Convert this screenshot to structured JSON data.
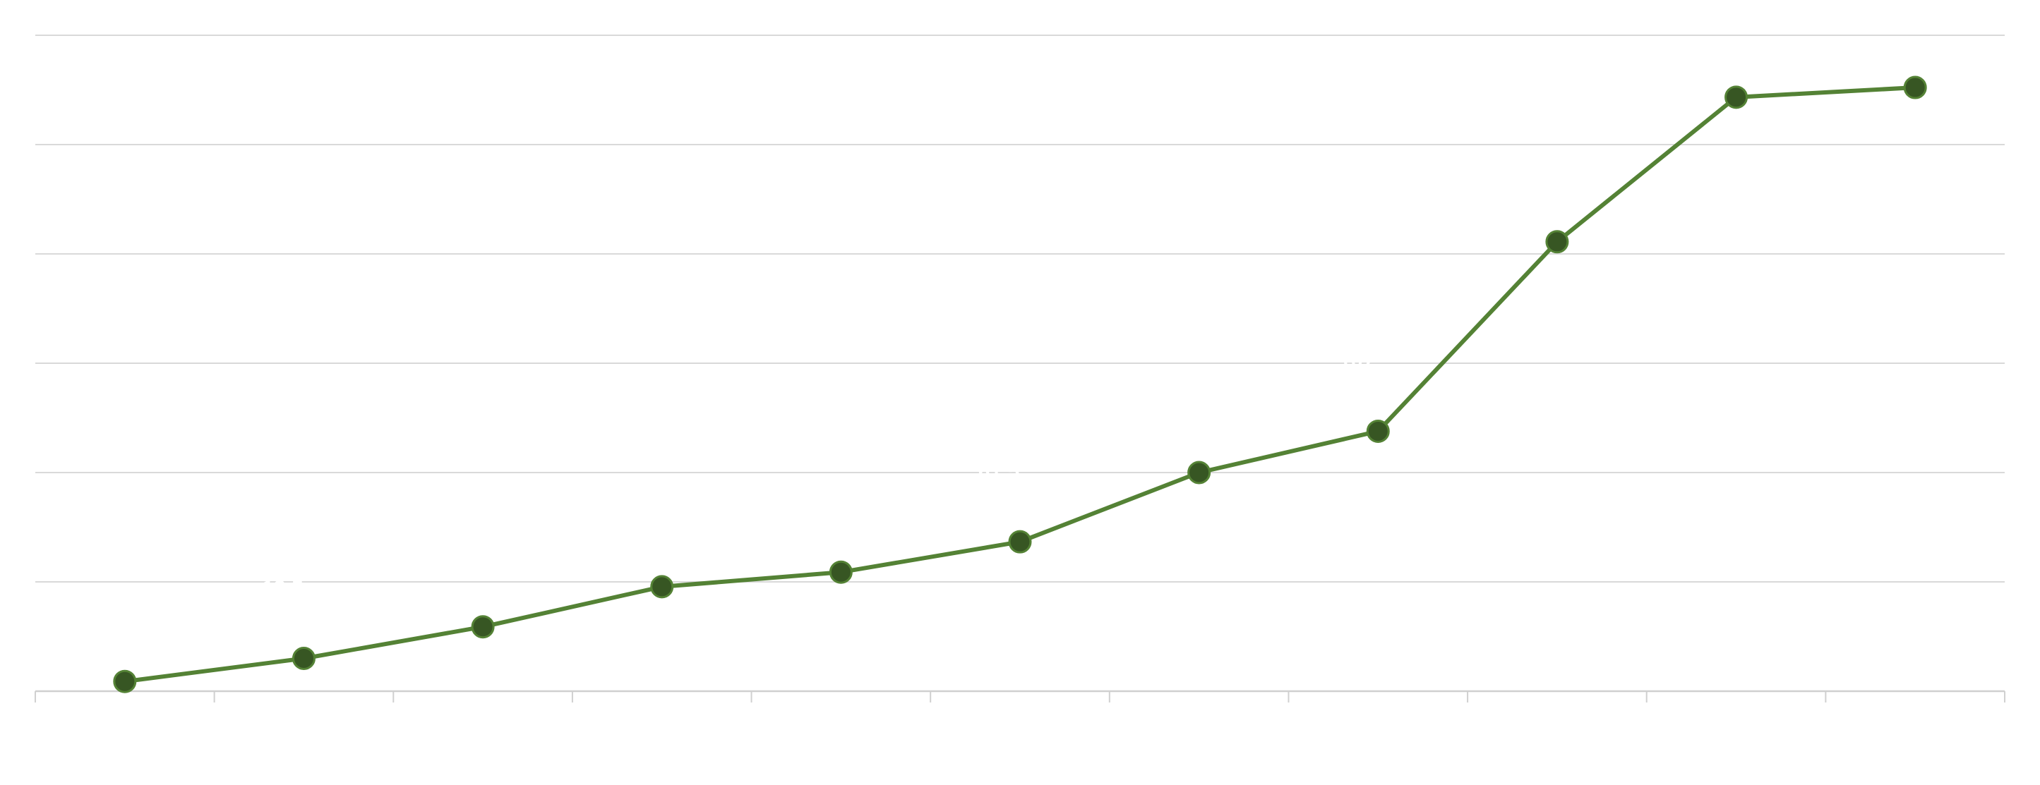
{
  "chart_data": {
    "type": "line",
    "title": "",
    "xlabel": "",
    "ylabel": "",
    "categories": [
      "",
      "",
      "",
      "",
      "",
      "",
      "",
      "",
      "",
      "",
      ""
    ],
    "series": [
      {
        "values": [
          4,
          13.5,
          26.5,
          43,
          49,
          61.5,
          90,
          107,
          185,
          244.5,
          248.5
        ]
      }
    ],
    "ylim": [
      0,
      270
    ],
    "yticks": [
      0,
      45,
      90,
      135,
      180,
      225,
      270
    ],
    "grid": true,
    "legend": "none",
    "colors": {
      "line": "#548235",
      "marker": "#375623",
      "grid": "#d9d9d9"
    }
  }
}
